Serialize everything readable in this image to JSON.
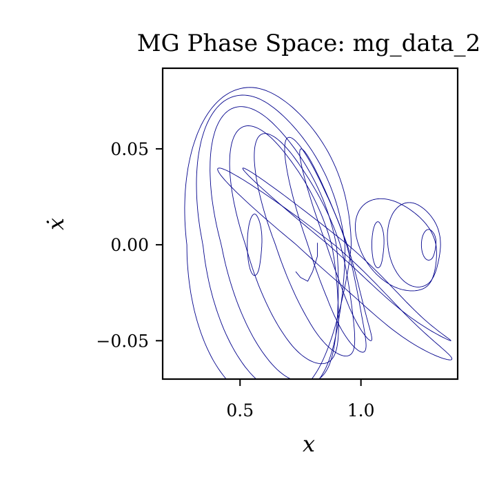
{
  "chart_data": {
    "type": "line",
    "title": "MG Phase Space: mg_data_2",
    "xlabel": "x",
    "ylabel": "ẋ",
    "xlim": [
      0.18,
      1.4
    ],
    "ylim": [
      -0.07,
      0.092
    ],
    "xticks": [
      {
        "value": 0.5,
        "label": "0.5"
      },
      {
        "value": 1.0,
        "label": "1.0"
      }
    ],
    "yticks": [
      {
        "value": 0.05,
        "label": "0.05"
      },
      {
        "value": 0.0,
        "label": "0.00"
      },
      {
        "value": -0.05,
        "label": "−0.05"
      }
    ],
    "grid": false,
    "series": [
      {
        "color": "#00008b",
        "loops": [
          {
            "cx": 0.62,
            "cy": 0.0,
            "ax": 0.34,
            "ay": 0.082,
            "skew": 0.42,
            "phase": 0.0
          },
          {
            "cx": 0.64,
            "cy": 0.0,
            "ax": 0.3,
            "ay": 0.078,
            "skew": 0.4,
            "phase": 0.3
          },
          {
            "cx": 0.66,
            "cy": 0.0,
            "ax": 0.26,
            "ay": 0.072,
            "skew": 0.35,
            "phase": 0.6
          },
          {
            "cx": 0.7,
            "cy": 0.0,
            "ax": 0.22,
            "ay": 0.062,
            "skew": 0.3,
            "phase": 0.9
          },
          {
            "cx": 0.78,
            "cy": 0.0,
            "ax": 0.2,
            "ay": 0.058,
            "skew": 0.25,
            "phase": 1.2
          },
          {
            "cx": 0.86,
            "cy": 0.0,
            "ax": 0.16,
            "ay": 0.056,
            "skew": 0.2,
            "phase": 1.5
          },
          {
            "cx": 0.9,
            "cy": 0.0,
            "ax": 0.14,
            "ay": 0.05,
            "skew": 0.18,
            "phase": 1.8
          },
          {
            "cx": 0.56,
            "cy": 0.0,
            "ax": 0.03,
            "ay": 0.016,
            "skew": 0.0,
            "phase": 0.0
          },
          {
            "cx": 1.07,
            "cy": 0.0,
            "ax": 0.025,
            "ay": 0.012,
            "skew": 0.0,
            "phase": 0.0
          },
          {
            "cx": 1.28,
            "cy": 0.0,
            "ax": 0.03,
            "ay": 0.008,
            "skew": 0.0,
            "phase": 0.0
          },
          {
            "cx": 1.15,
            "cy": 0.0,
            "ax": 0.17,
            "ay": 0.024,
            "skew": 0.1,
            "phase": 0.5
          },
          {
            "cx": 1.22,
            "cy": 0.0,
            "ax": 0.11,
            "ay": 0.022,
            "skew": 0.08,
            "phase": 0.2
          },
          {
            "cx": 0.95,
            "cy": -0.005,
            "ax": 0.4,
            "ay": 0.045,
            "skew": 0.2,
            "phase": 2.1
          },
          {
            "cx": 0.9,
            "cy": -0.01,
            "ax": 0.45,
            "ay": 0.05,
            "skew": 0.22,
            "phase": 2.5
          }
        ],
        "transient": [
          [
            0.82,
            0.001
          ],
          [
            0.82,
            -0.006
          ],
          [
            0.8,
            -0.014
          ],
          [
            0.78,
            -0.019
          ],
          [
            0.75,
            -0.017
          ],
          [
            0.73,
            -0.014
          ]
        ]
      }
    ]
  }
}
